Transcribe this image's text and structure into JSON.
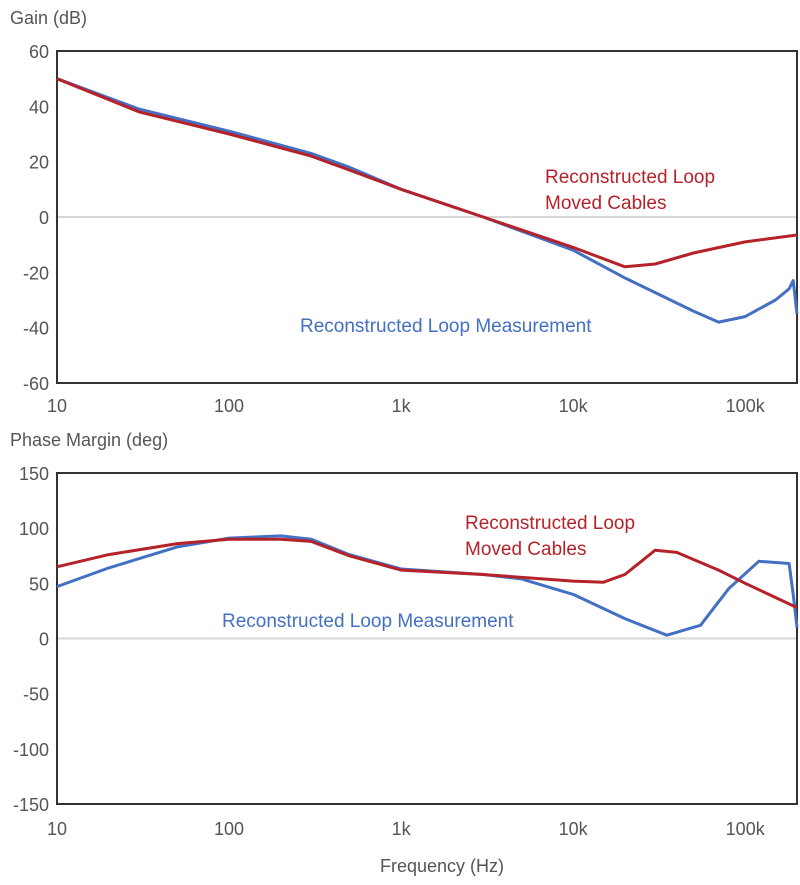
{
  "chart_data": [
    {
      "type": "line",
      "title": "",
      "ylabel": "Gain (dB)",
      "xlabel": "",
      "xscale": "log",
      "xlim": [
        10,
        200000
      ],
      "ylim": [
        -60,
        60
      ],
      "yticks": [
        60,
        40,
        20,
        0,
        -20,
        -40,
        -60
      ],
      "xticks": [
        {
          "value": 10,
          "label": "10"
        },
        {
          "value": 100,
          "label": "100"
        },
        {
          "value": 1000,
          "label": "1k"
        },
        {
          "value": 10000,
          "label": "10k"
        },
        {
          "value": 100000,
          "label": "100k"
        }
      ],
      "reference_line": 0,
      "series": [
        {
          "name": "Reconstructed Loop Measurement",
          "color": "#4470c4",
          "x": [
            10,
            30,
            100,
            300,
            500,
            1000,
            3000,
            10000,
            20000,
            50000,
            70000,
            100000,
            150000,
            180000,
            190000,
            200000
          ],
          "y": [
            50,
            39,
            31,
            23,
            18,
            10,
            0,
            -12,
            -22,
            -34,
            -38,
            -36,
            -30,
            -26,
            -23,
            -35
          ]
        },
        {
          "name": "Reconstructed Loop\nMoved Cables",
          "color": "#b5222a",
          "x": [
            10,
            30,
            100,
            300,
            500,
            1000,
            3000,
            10000,
            20000,
            30000,
            50000,
            100000,
            200000
          ],
          "y": [
            50,
            38,
            30,
            22,
            17,
            10,
            0,
            -11,
            -18,
            -17,
            -13,
            -9,
            -6.5
          ]
        }
      ],
      "annotations": [
        {
          "text": "Reconstructed Loop",
          "color": "#b5222a"
        },
        {
          "text": "Moved Cables",
          "color": "#b5222a"
        },
        {
          "text": "Reconstructed Loop Measurement",
          "color": "#4470c4"
        }
      ]
    },
    {
      "type": "line",
      "title": "",
      "ylabel": "Phase Margin (deg)",
      "xlabel": "Frequency (Hz)",
      "xscale": "log",
      "xlim": [
        10,
        200000
      ],
      "ylim": [
        -150,
        150
      ],
      "yticks": [
        150,
        100,
        50,
        0,
        -50,
        -100,
        -150
      ],
      "xticks": [
        {
          "value": 10,
          "label": "10"
        },
        {
          "value": 100,
          "label": "100"
        },
        {
          "value": 1000,
          "label": "1k"
        },
        {
          "value": 10000,
          "label": "10k"
        },
        {
          "value": 100000,
          "label": "100k"
        }
      ],
      "reference_line": 0,
      "series": [
        {
          "name": "Reconstructed Loop Measurement",
          "color": "#4470c4",
          "x": [
            10,
            20,
            50,
            100,
            200,
            300,
            500,
            1000,
            3000,
            5000,
            10000,
            20000,
            35000,
            45000,
            55000,
            80000,
            120000,
            180000,
            190000,
            200000
          ],
          "y": [
            47,
            64,
            83,
            91,
            93,
            90,
            76,
            63,
            58,
            54,
            40,
            18,
            3,
            8,
            12,
            45,
            70,
            68,
            40,
            10
          ]
        },
        {
          "name": "Reconstructed Loop\nMoved Cables",
          "color": "#b5222a",
          "x": [
            10,
            20,
            50,
            100,
            200,
            300,
            500,
            1000,
            3000,
            10000,
            15000,
            20000,
            30000,
            40000,
            70000,
            100000,
            200000
          ],
          "y": [
            65,
            76,
            86,
            90,
            90,
            88,
            75,
            62,
            58,
            52,
            51,
            58,
            80,
            78,
            62,
            50,
            28
          ]
        }
      ],
      "annotations": [
        {
          "text": "Reconstructed Loop",
          "color": "#b5222a"
        },
        {
          "text": "Moved Cables",
          "color": "#b5222a"
        },
        {
          "text": "Reconstructed Loop Measurement",
          "color": "#4470c4"
        }
      ]
    }
  ]
}
